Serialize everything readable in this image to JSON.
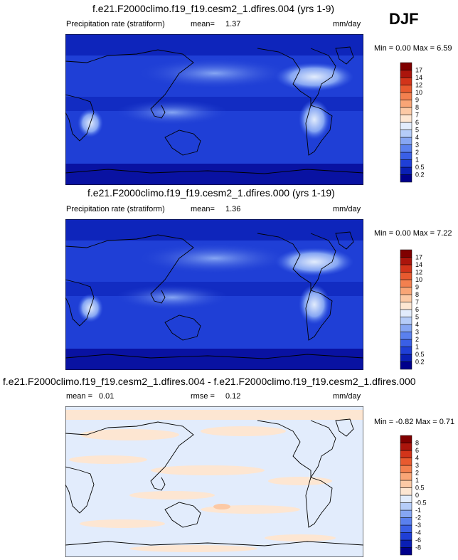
{
  "season": "DJF",
  "panels": [
    {
      "title": "f.e21.F2000climo.f19_f19.cesm2_1.dfires.004 (yrs 1-9)",
      "variable": "Precipitation rate (stratiform)",
      "stat1_label": "mean=",
      "stat1_value": "1.37",
      "stat2_label": "",
      "stat2_value": "",
      "units": "mm/day",
      "min_label": "Min =",
      "min_value": "0.00",
      "max_label": "Max =",
      "max_value": "6.59"
    },
    {
      "title": "f.e21.F2000climo.f19_f19.cesm2_1.dfires.000 (yrs 1-19)",
      "variable": "Precipitation rate (stratiform)",
      "stat1_label": "mean=",
      "stat1_value": "1.36",
      "stat2_label": "",
      "stat2_value": "",
      "units": "mm/day",
      "min_label": "Min =",
      "min_value": "0.00",
      "max_label": "Max =",
      "max_value": "7.22"
    },
    {
      "title": "f.e21.F2000climo.f19_f19.cesm2_1.dfires.004 - f.e21.F2000climo.f19_f19.cesm2_1.dfires.000",
      "variable": "",
      "stat1_label": "mean =",
      "stat1_value": "0.01",
      "stat2_label": "rmse =",
      "stat2_value": "0.12",
      "units": "mm/day",
      "min_label": "Min =",
      "min_value": "-0.82",
      "max_label": "Max =",
      "max_value": "0.71"
    }
  ],
  "chart_data": [
    {
      "type": "heatmap",
      "title": "f.e21.F2000climo.f19_f19.cesm2_1.dfires.004 (yrs 1-9)",
      "colorbar_levels": [
        "0.2",
        "0.5",
        "1",
        "2",
        "3",
        "4",
        "5",
        "6",
        "7",
        "8",
        "9",
        "10",
        "12",
        "14",
        "17"
      ],
      "colorbar_colors": [
        "#00008b",
        "#0a1fb4",
        "#1f3fd6",
        "#3a5fe6",
        "#5a80ee",
        "#86a6f3",
        "#b5ccf8",
        "#e2ecfc",
        "#fde6d2",
        "#fcc9a5",
        "#f9a576",
        "#f3804f",
        "#e85a2f",
        "#d2341a",
        "#ab150c",
        "#800000"
      ],
      "min": 0.0,
      "max": 6.59,
      "mean": 1.37
    },
    {
      "type": "heatmap",
      "title": "f.e21.F2000climo.f19_f19.cesm2_1.dfires.000 (yrs 1-19)",
      "colorbar_levels": [
        "0.2",
        "0.5",
        "1",
        "2",
        "3",
        "4",
        "5",
        "6",
        "7",
        "8",
        "9",
        "10",
        "12",
        "14",
        "17"
      ],
      "colorbar_colors": [
        "#00008b",
        "#0a1fb4",
        "#1f3fd6",
        "#3a5fe6",
        "#5a80ee",
        "#86a6f3",
        "#b5ccf8",
        "#e2ecfc",
        "#fde6d2",
        "#fcc9a5",
        "#f9a576",
        "#f3804f",
        "#e85a2f",
        "#d2341a",
        "#ab150c",
        "#800000"
      ],
      "min": 0.0,
      "max": 7.22,
      "mean": 1.36
    },
    {
      "type": "heatmap",
      "title": "f.e21.F2000climo.f19_f19.cesm2_1.dfires.004 - f.e21.F2000climo.f19_f19.cesm2_1.dfires.000",
      "colorbar_levels": [
        "-8",
        "-6",
        "-4",
        "-3",
        "-2",
        "-1",
        "-0.5",
        "0",
        "0.5",
        "1",
        "2",
        "3",
        "4",
        "6",
        "8"
      ],
      "colorbar_colors": [
        "#00008b",
        "#0a1fb4",
        "#1f3fd6",
        "#3a5fe6",
        "#5a80ee",
        "#86a6f3",
        "#b5ccf8",
        "#e2ecfc",
        "#fde6d2",
        "#fcc9a5",
        "#f9a576",
        "#f3804f",
        "#e85a2f",
        "#d2341a",
        "#ab150c",
        "#800000"
      ],
      "min": -0.82,
      "max": 0.71,
      "mean": 0.01,
      "rmse": 0.12
    }
  ]
}
